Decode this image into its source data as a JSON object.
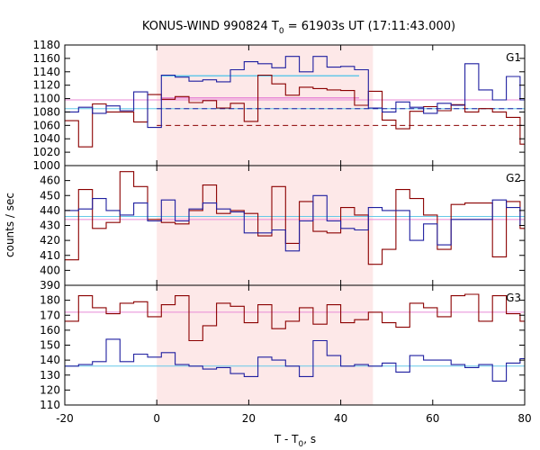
{
  "chart_data": {
    "type": "line",
    "title_main": "KONUS-WIND 990824 T",
    "title_sub": "0",
    "title_rest": " = 61903s UT (17:11:43.000)",
    "xlabel_main": "T - T",
    "xlabel_sub": "0",
    "xlabel_rest": ", s",
    "ylabel": "counts / sec",
    "xlim": [
      -20,
      80
    ],
    "xticks": [
      -20,
      0,
      20,
      40,
      60,
      80
    ],
    "shade": [
      0,
      47
    ],
    "colors": {
      "blue": "#1f1fa0",
      "red": "#8b0000",
      "cyan": "#66c8e8",
      "pink": "#e88ad6",
      "shade": "#fde8e8"
    },
    "panels": [
      {
        "label": "G1",
        "ylim": [
          1000,
          1180
        ],
        "yticks": [
          1000,
          1020,
          1040,
          1060,
          1080,
          1100,
          1120,
          1140,
          1160,
          1180
        ],
        "blue_x": [
          -20,
          -17,
          -14,
          -11,
          -8,
          -5,
          -2,
          1,
          4,
          7,
          10,
          13,
          16,
          19,
          22,
          25,
          28,
          31,
          34,
          37,
          40,
          43,
          46,
          49,
          52,
          55,
          58,
          61,
          64,
          67,
          70,
          73,
          76,
          79,
          80
        ],
        "blue_y": [
          1080,
          1087,
          1078,
          1089,
          1082,
          1110,
          1057,
          1135,
          1132,
          1126,
          1128,
          1125,
          1143,
          1155,
          1152,
          1146,
          1163,
          1140,
          1163,
          1147,
          1148,
          1143,
          1086,
          1080,
          1095,
          1087,
          1078,
          1093,
          1090,
          1152,
          1113,
          1098,
          1133,
          1098,
          1098
        ],
        "red_x": [
          -20,
          -17,
          -14,
          -11,
          -8,
          -5,
          -2,
          1,
          4,
          7,
          10,
          13,
          16,
          19,
          22,
          25,
          28,
          31,
          34,
          37,
          40,
          43,
          46,
          49,
          52,
          55,
          58,
          61,
          64,
          67,
          70,
          73,
          76,
          79,
          80
        ],
        "red_y": [
          1067,
          1028,
          1092,
          1080,
          1080,
          1065,
          1106,
          1099,
          1103,
          1094,
          1097,
          1086,
          1093,
          1066,
          1135,
          1122,
          1105,
          1117,
          1115,
          1113,
          1112,
          1090,
          1111,
          1068,
          1055,
          1081,
          1088,
          1082,
          1091,
          1080,
          1085,
          1080,
          1072,
          1032,
          1032
        ],
        "blue_mean": 1085,
        "red_mean": 1060,
        "blue_fit": [
          1,
          44,
          1134
        ],
        "red_fit": [
          1,
          44,
          1101
        ],
        "cyan_level": 1085,
        "pink_level": 1098
      },
      {
        "label": "G2",
        "ylim": [
          390,
          470
        ],
        "yticks": [
          390,
          400,
          410,
          420,
          430,
          440,
          450,
          460,
          470
        ],
        "blue_x": [
          -20,
          -17,
          -14,
          -11,
          -8,
          -5,
          -2,
          1,
          4,
          7,
          10,
          13,
          16,
          19,
          22,
          25,
          28,
          31,
          34,
          37,
          40,
          43,
          46,
          49,
          52,
          55,
          58,
          61,
          64,
          67,
          70,
          73,
          76,
          79,
          80
        ],
        "blue_y": [
          440,
          441,
          448,
          440,
          437,
          445,
          433,
          447,
          433,
          441,
          445,
          441,
          439,
          425,
          425,
          427,
          413,
          433,
          450,
          433,
          428,
          427,
          442,
          440,
          440,
          420,
          431,
          417,
          434,
          434,
          434,
          447,
          442,
          430,
          430
        ],
        "red_x": [
          -20,
          -17,
          -14,
          -11,
          -8,
          -5,
          -2,
          1,
          4,
          7,
          10,
          13,
          16,
          19,
          22,
          25,
          28,
          31,
          34,
          37,
          40,
          43,
          46,
          49,
          52,
          55,
          58,
          61,
          64,
          67,
          70,
          73,
          76,
          79,
          80
        ],
        "red_y": [
          407,
          454,
          428,
          432,
          466,
          456,
          434,
          432,
          431,
          440,
          457,
          438,
          440,
          438,
          423,
          456,
          418,
          446,
          426,
          425,
          442,
          437,
          404,
          414,
          454,
          448,
          437,
          414,
          444,
          445,
          445,
          409,
          446,
          428,
          428
        ],
        "cyan_level": 436,
        "pink_level": 434
      },
      {
        "label": "G3",
        "ylim": [
          110,
          190
        ],
        "yticks": [
          110,
          120,
          130,
          140,
          150,
          160,
          170,
          180,
          190
        ],
        "blue_x": [
          -20,
          -17,
          -14,
          -11,
          -8,
          -5,
          -2,
          1,
          4,
          7,
          10,
          13,
          16,
          19,
          22,
          25,
          28,
          31,
          34,
          37,
          40,
          43,
          46,
          49,
          52,
          55,
          58,
          61,
          64,
          67,
          70,
          73,
          76,
          79,
          80
        ],
        "blue_y": [
          136,
          137,
          139,
          154,
          139,
          144,
          142,
          145,
          137,
          136,
          134,
          135,
          131,
          129,
          142,
          140,
          136,
          129,
          153,
          143,
          136,
          137,
          136,
          138,
          132,
          143,
          140,
          140,
          137,
          135,
          137,
          126,
          138,
          141,
          141
        ],
        "red_x": [
          -20,
          -17,
          -14,
          -11,
          -8,
          -5,
          -2,
          1,
          4,
          7,
          10,
          13,
          16,
          19,
          22,
          25,
          28,
          31,
          34,
          37,
          40,
          43,
          46,
          49,
          52,
          55,
          58,
          61,
          64,
          67,
          70,
          73,
          76,
          79,
          80
        ],
        "red_y": [
          166,
          183,
          175,
          171,
          178,
          179,
          169,
          177,
          183,
          153,
          163,
          178,
          176,
          165,
          177,
          161,
          166,
          175,
          164,
          177,
          165,
          167,
          172,
          165,
          162,
          178,
          175,
          169,
          183,
          184,
          166,
          183,
          171,
          166,
          166
        ],
        "cyan_level": 136,
        "pink_level": 172
      }
    ]
  }
}
